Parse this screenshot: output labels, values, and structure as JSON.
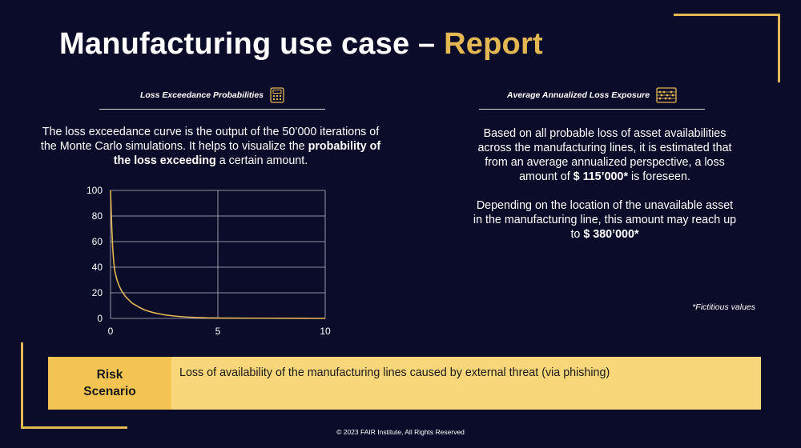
{
  "header": {
    "title_main": "Manufacturing use case – ",
    "title_accent": "Report"
  },
  "left_section": {
    "heading": "Loss Exceedance Probabilities",
    "icon": "calculator-icon",
    "text_before": "The loss exceedance curve is the output of the 50’000 iterations of the Monte Carlo simulations. It helps to visualize the ",
    "text_bold": "probability of the loss exceeding",
    "text_after": " a certain amount."
  },
  "right_section": {
    "heading": "Average Annualized Loss Exposure",
    "icon": "abacus-icon",
    "p1_before": "Based on all probable loss of asset availabilities across the manufacturing lines, it is estimated that from an average annualized perspective, a loss amount of ",
    "p1_bold": "$ 115’000*",
    "p1_after": " is foreseen.",
    "p2_before": "Depending on the location of the unavailable asset in the manufacturing line, this amount may reach up to ",
    "p2_bold": "$ 380’000*",
    "note": "*Fictitious values"
  },
  "chart_data": {
    "type": "line",
    "title": "",
    "xlabel": "",
    "ylabel": "",
    "xlim": [
      0,
      10
    ],
    "ylim": [
      0,
      100
    ],
    "x_ticks": [
      "0",
      "5",
      "10"
    ],
    "y_ticks": [
      "0",
      "20",
      "40",
      "60",
      "80",
      "100"
    ],
    "grid": true,
    "series": [
      {
        "color": "#e3b752",
        "x": [
          0,
          0.03,
          0.06,
          0.1,
          0.15,
          0.2,
          0.3,
          0.4,
          0.5,
          0.7,
          1.0,
          1.3,
          1.6,
          2.0,
          2.5,
          3.0,
          3.5,
          4.0,
          4.5,
          5.0,
          6.0,
          7.0,
          8.0,
          9.0,
          10.0
        ],
        "y": [
          100,
          85,
          70,
          55,
          44,
          37,
          30,
          25.5,
          22,
          17,
          12,
          9,
          6.5,
          4.5,
          2.8,
          1.8,
          1.1,
          0.7,
          0.4,
          0.3,
          0.2,
          0.15,
          0.1,
          0.05,
          0
        ]
      }
    ]
  },
  "risk_scenario": {
    "label": "Risk Scenario",
    "text": "Loss of availability of the manufacturing lines caused by external threat (via phishing)"
  },
  "footer": {
    "copyright": "© 2023 FAIR Institute, All Rights Reserved"
  },
  "colors": {
    "background": "#0b0b2a",
    "accent": "#e3b752",
    "risk_label_bg": "#f4c452",
    "risk_bar_bg": "#f8d67a"
  }
}
